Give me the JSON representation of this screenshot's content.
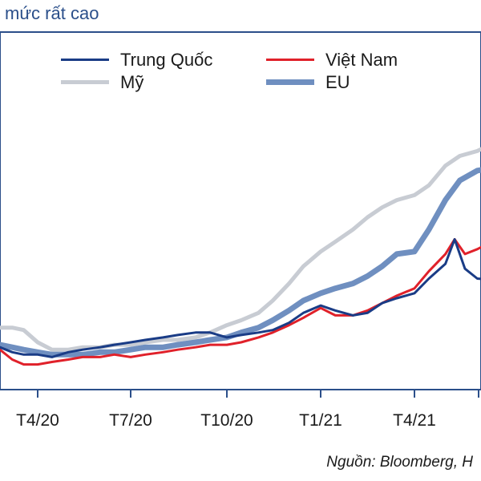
{
  "header": {
    "title": "mức rất cao"
  },
  "footer": {
    "source": "Nguồn: Bloomberg, H"
  },
  "colors": {
    "title": "#2b4f8a",
    "china": "#1a3c86",
    "vietnam": "#e0212a",
    "us": "#c8ccd3",
    "eu": "#6f8fc0"
  },
  "chart_data": {
    "type": "line",
    "title": "mức rất cao",
    "xlabel": "",
    "ylabel": "",
    "x_tick_labels": [
      "T4/20",
      "T7/20",
      "T10/20",
      "T1/21",
      "T4/21"
    ],
    "x_range": [
      "2020-02-15",
      "2021-06-30"
    ],
    "y_range": [
      0,
      100
    ],
    "grid": false,
    "legend_position": "top",
    "series": [
      {
        "name": "Trung Quốc",
        "color": "#1a3c86",
        "stroke": 3,
        "points": [
          [
            "2020-02-15",
            14
          ],
          [
            "2020-03-01",
            12
          ],
          [
            "2020-03-15",
            11
          ],
          [
            "2020-04-01",
            11
          ],
          [
            "2020-04-15",
            10
          ],
          [
            "2020-05-01",
            12
          ],
          [
            "2020-05-15",
            13
          ],
          [
            "2020-06-01",
            14
          ],
          [
            "2020-06-15",
            15
          ],
          [
            "2020-07-01",
            16
          ],
          [
            "2020-07-15",
            17
          ],
          [
            "2020-08-01",
            18
          ],
          [
            "2020-08-15",
            19
          ],
          [
            "2020-09-01",
            20
          ],
          [
            "2020-09-15",
            20
          ],
          [
            "2020-10-01",
            18
          ],
          [
            "2020-10-15",
            19
          ],
          [
            "2020-11-01",
            20
          ],
          [
            "2020-11-15",
            21
          ],
          [
            "2020-12-01",
            24
          ],
          [
            "2020-12-15",
            28
          ],
          [
            "2021-01-01",
            31
          ],
          [
            "2021-01-15",
            29
          ],
          [
            "2021-02-01",
            27
          ],
          [
            "2021-02-15",
            28
          ],
          [
            "2021-03-01",
            32
          ],
          [
            "2021-03-15",
            34
          ],
          [
            "2021-04-01",
            36
          ],
          [
            "2021-04-15",
            42
          ],
          [
            "2021-05-01",
            48
          ],
          [
            "2021-05-10",
            58
          ],
          [
            "2021-05-20",
            46
          ],
          [
            "2021-06-01",
            42
          ],
          [
            "2021-06-30",
            41
          ]
        ]
      },
      {
        "name": "Việt Nam",
        "color": "#e0212a",
        "stroke": 3,
        "points": [
          [
            "2020-02-15",
            13
          ],
          [
            "2020-03-01",
            9
          ],
          [
            "2020-03-15",
            7
          ],
          [
            "2020-04-01",
            7
          ],
          [
            "2020-04-15",
            8
          ],
          [
            "2020-05-01",
            9
          ],
          [
            "2020-05-15",
            10
          ],
          [
            "2020-06-01",
            10
          ],
          [
            "2020-06-15",
            11
          ],
          [
            "2020-07-01",
            10
          ],
          [
            "2020-07-15",
            11
          ],
          [
            "2020-08-01",
            12
          ],
          [
            "2020-08-15",
            13
          ],
          [
            "2020-09-01",
            14
          ],
          [
            "2020-09-15",
            15
          ],
          [
            "2020-10-01",
            15
          ],
          [
            "2020-10-15",
            16
          ],
          [
            "2020-11-01",
            18
          ],
          [
            "2020-11-15",
            20
          ],
          [
            "2020-12-01",
            23
          ],
          [
            "2020-12-15",
            26
          ],
          [
            "2021-01-01",
            30
          ],
          [
            "2021-01-15",
            27
          ],
          [
            "2021-02-01",
            27
          ],
          [
            "2021-02-15",
            29
          ],
          [
            "2021-03-01",
            32
          ],
          [
            "2021-03-15",
            35
          ],
          [
            "2021-04-01",
            38
          ],
          [
            "2021-04-15",
            45
          ],
          [
            "2021-05-01",
            52
          ],
          [
            "2021-05-10",
            58
          ],
          [
            "2021-05-20",
            52
          ],
          [
            "2021-06-01",
            54
          ],
          [
            "2021-06-15",
            57
          ],
          [
            "2021-06-30",
            58
          ]
        ]
      },
      {
        "name": "Mỹ",
        "color": "#c8ccd3",
        "stroke": 5,
        "points": [
          [
            "2020-02-15",
            22
          ],
          [
            "2020-03-01",
            22
          ],
          [
            "2020-03-15",
            21
          ],
          [
            "2020-04-01",
            16
          ],
          [
            "2020-04-15",
            13
          ],
          [
            "2020-05-01",
            13
          ],
          [
            "2020-05-15",
            14
          ],
          [
            "2020-06-01",
            14
          ],
          [
            "2020-06-15",
            15
          ],
          [
            "2020-07-01",
            15
          ],
          [
            "2020-07-15",
            16
          ],
          [
            "2020-08-01",
            17
          ],
          [
            "2020-08-15",
            17
          ],
          [
            "2020-09-01",
            18
          ],
          [
            "2020-09-15",
            20
          ],
          [
            "2020-10-01",
            23
          ],
          [
            "2020-10-15",
            25
          ],
          [
            "2020-11-01",
            28
          ],
          [
            "2020-11-15",
            33
          ],
          [
            "2020-12-01",
            40
          ],
          [
            "2020-12-15",
            47
          ],
          [
            "2021-01-01",
            53
          ],
          [
            "2021-01-15",
            57
          ],
          [
            "2021-02-01",
            62
          ],
          [
            "2021-02-15",
            67
          ],
          [
            "2021-03-01",
            71
          ],
          [
            "2021-03-15",
            74
          ],
          [
            "2021-04-01",
            76
          ],
          [
            "2021-04-15",
            80
          ],
          [
            "2021-05-01",
            88
          ],
          [
            "2021-05-15",
            92
          ],
          [
            "2021-06-01",
            94
          ],
          [
            "2021-06-30",
            100
          ]
        ]
      },
      {
        "name": "EU",
        "color": "#6f8fc0",
        "stroke": 7,
        "points": [
          [
            "2020-02-15",
            15
          ],
          [
            "2020-03-01",
            14
          ],
          [
            "2020-03-15",
            13
          ],
          [
            "2020-04-01",
            12
          ],
          [
            "2020-04-15",
            11
          ],
          [
            "2020-05-01",
            11
          ],
          [
            "2020-05-15",
            11
          ],
          [
            "2020-06-01",
            12
          ],
          [
            "2020-06-15",
            12
          ],
          [
            "2020-07-01",
            13
          ],
          [
            "2020-07-15",
            14
          ],
          [
            "2020-08-01",
            14
          ],
          [
            "2020-08-15",
            15
          ],
          [
            "2020-09-01",
            16
          ],
          [
            "2020-09-15",
            17
          ],
          [
            "2020-10-01",
            18
          ],
          [
            "2020-10-15",
            20
          ],
          [
            "2020-11-01",
            22
          ],
          [
            "2020-11-15",
            25
          ],
          [
            "2020-12-01",
            29
          ],
          [
            "2020-12-15",
            33
          ],
          [
            "2021-01-01",
            36
          ],
          [
            "2021-01-15",
            38
          ],
          [
            "2021-02-01",
            40
          ],
          [
            "2021-02-15",
            43
          ],
          [
            "2021-03-01",
            47
          ],
          [
            "2021-03-15",
            52
          ],
          [
            "2021-04-01",
            53
          ],
          [
            "2021-04-15",
            62
          ],
          [
            "2021-05-01",
            74
          ],
          [
            "2021-05-15",
            82
          ],
          [
            "2021-06-01",
            86
          ],
          [
            "2021-06-30",
            88
          ]
        ]
      }
    ]
  }
}
